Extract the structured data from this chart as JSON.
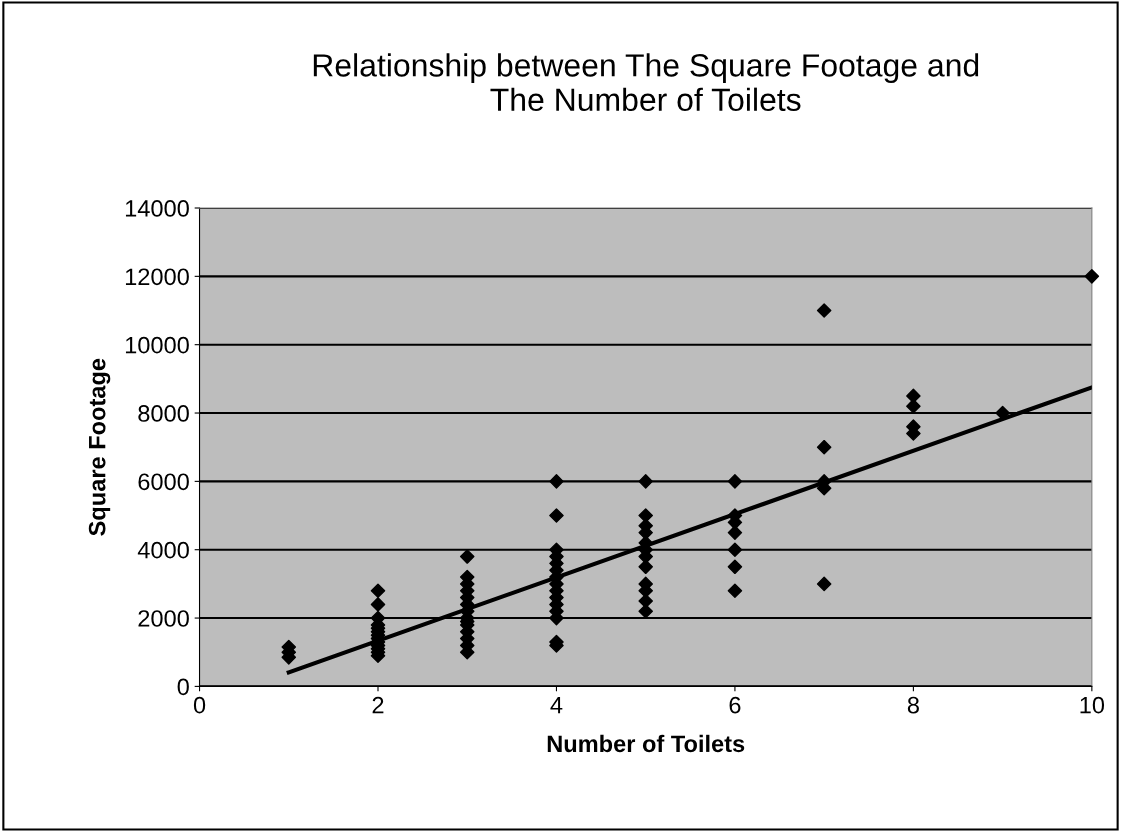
{
  "chart_data": {
    "type": "scatter",
    "title": "Relationship between The Square Footage and\nThe Number of Toilets",
    "xlabel": "Number of Toilets",
    "ylabel": "Square Footage",
    "series": [
      {
        "color": "#000000",
        "marker": "diamond",
        "x": [
          1,
          1,
          1,
          2,
          2,
          2,
          2,
          2,
          2,
          2,
          2,
          2,
          2,
          2,
          2,
          2,
          3,
          3,
          3,
          3,
          3,
          3,
          3,
          3,
          3,
          3,
          3,
          3,
          3,
          3,
          4,
          4,
          4,
          4,
          4,
          4,
          4,
          4,
          4,
          4,
          4,
          4,
          4,
          4,
          4,
          5,
          5,
          5,
          5,
          5,
          5,
          5,
          5,
          5,
          5,
          5,
          5,
          6,
          6,
          6,
          6,
          6,
          6,
          6,
          7,
          7,
          7,
          7,
          7,
          8,
          8,
          8,
          8,
          9,
          10
        ],
        "values": [
          1150,
          1000,
          850,
          2800,
          2400,
          2000,
          1800,
          1700,
          1600,
          1500,
          1400,
          1300,
          1200,
          1100,
          1000,
          900,
          3800,
          3200,
          3000,
          2800,
          2600,
          2400,
          2200,
          2000,
          1900,
          1800,
          1600,
          1400,
          1200,
          1000,
          6000,
          5000,
          4000,
          3800,
          3600,
          3400,
          3200,
          3000,
          2800,
          2600,
          2400,
          2200,
          2000,
          1300,
          1200,
          6000,
          5000,
          4700,
          4500,
          4200,
          4000,
          3800,
          3500,
          3000,
          2800,
          2500,
          2200,
          6000,
          5000,
          4800,
          4500,
          4000,
          3500,
          2800,
          11000,
          7000,
          6000,
          5800,
          3000,
          8500,
          8200,
          7600,
          7400,
          8000,
          12000
        ]
      },
      {
        "type": "line",
        "color": "#000000",
        "x": [
          1,
          10
        ],
        "values": [
          410,
          8750
        ]
      }
    ],
    "xlim": [
      0,
      10
    ],
    "xticks": [
      0,
      2,
      4,
      6,
      8,
      10
    ],
    "ylim": [
      0,
      14000
    ],
    "yticks": [
      0,
      2000,
      4000,
      6000,
      8000,
      10000,
      12000,
      14000
    ],
    "grid": "y",
    "legend": false
  }
}
